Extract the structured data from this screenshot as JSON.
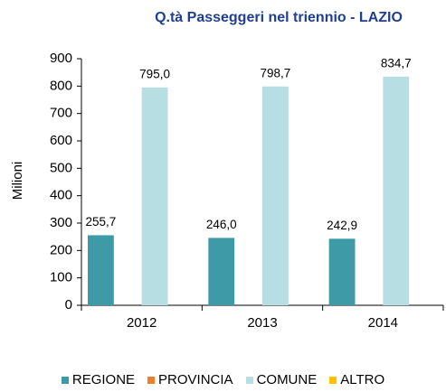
{
  "chart_data": {
    "type": "bar",
    "title": "Q.tà Passeggeri nel triennio - LAZIO",
    "y_label": "Milioni",
    "categories": [
      "2012",
      "2013",
      "2014"
    ],
    "series": [
      {
        "name": "REGIONE",
        "color": "#3f9aa8",
        "values": [
          255.7,
          246.0,
          242.9
        ],
        "value_labels": [
          "255,7",
          "246,0",
          "242,9"
        ]
      },
      {
        "name": "PROVINCIA",
        "color": "#ed7d31",
        "values": [
          null,
          null,
          null
        ]
      },
      {
        "name": "COMUNE",
        "color": "#b7dee3",
        "values": [
          795.0,
          798.7,
          834.7
        ],
        "value_labels": [
          "795,0",
          "798,7",
          "834,7"
        ]
      },
      {
        "name": "ALTRO",
        "color": "#ffc000",
        "values": [
          null,
          null,
          null
        ]
      }
    ],
    "ylim": [
      0,
      900
    ],
    "yticks": [
      0,
      100,
      200,
      300,
      400,
      500,
      600,
      700,
      800,
      900
    ],
    "grid": false,
    "legend": "bottom"
  }
}
